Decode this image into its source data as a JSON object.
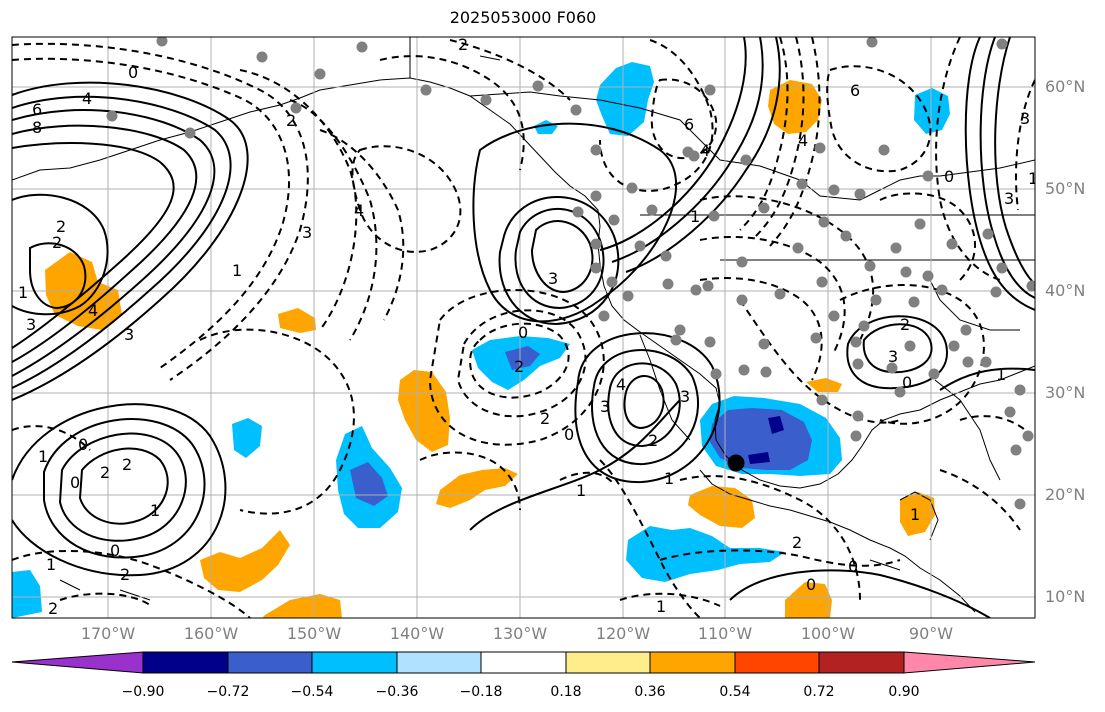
{
  "title": "2025053000 F060",
  "lat_labels": [
    "60°N",
    "50°N",
    "40°N",
    "30°N",
    "20°N",
    "10°N"
  ],
  "lon_labels": [
    "170°W",
    "160°W",
    "150°W",
    "140°W",
    "130°W",
    "120°W",
    "110°W",
    "100°W",
    "90°W"
  ],
  "colorbar": {
    "colors": [
      "#9932cc",
      "#00008b",
      "#3a5fcd",
      "#00bfff",
      "#b0e2ff",
      "#ffffff",
      "#ffec8b",
      "#ffa500",
      "#ff4500",
      "#b22222",
      "#ff88aa"
    ],
    "ticks": [
      "−0.90",
      "−0.72",
      "−0.54",
      "−0.36",
      "−0.18",
      "0.18",
      "0.36",
      "0.54",
      "0.72",
      "0.90"
    ]
  },
  "contour_labels": {
    "solid": [
      "6",
      "8",
      "2",
      "2",
      "3",
      "4",
      "3",
      "3",
      "2",
      "2",
      "1",
      "0",
      "3",
      "1",
      "4",
      "3",
      "1",
      "2",
      "0",
      "0",
      "6",
      "4",
      "3",
      "2",
      "3",
      "1",
      "0"
    ],
    "dashed": [
      "0",
      "4",
      "2",
      "1",
      "4",
      "2",
      "3",
      "0",
      "1",
      "0",
      "2",
      "2",
      "1",
      "1",
      "2",
      "2",
      "0",
      "1",
      "0",
      "2",
      "1",
      "6",
      "4",
      "3",
      "1",
      "0",
      "1"
    ]
  }
}
